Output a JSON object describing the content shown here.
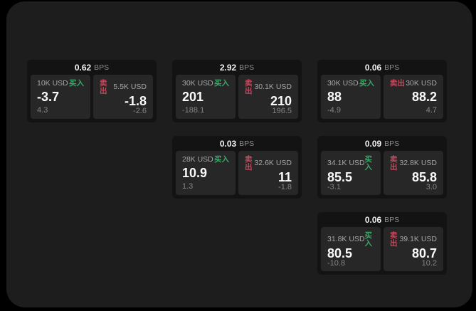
{
  "labels": {
    "bps": "BPS",
    "buy": "买入",
    "sell": "卖出"
  },
  "colors": {
    "page_bg": "#000000",
    "panel_bg": "#1d1d1e",
    "card_bg": "#131313",
    "subpanel_bg": "#272727",
    "buy_green": "#3da768",
    "sell_red": "#c4475c",
    "value_text": "#fafafa",
    "muted_text": "#8d8d8d"
  },
  "cards": [
    {
      "bps": "0.62",
      "buy": {
        "amount": "10K USD",
        "value": "-3.7",
        "sub": "4.3"
      },
      "sell": {
        "amount": "5.5K USD",
        "value": "-1.8",
        "sub": "-2.6"
      }
    },
    {
      "bps": "2.92",
      "buy": {
        "amount": "30K USD",
        "value": "201",
        "sub": "-188.1"
      },
      "sell": {
        "amount": "30.1K USD",
        "value": "210",
        "sub": "196.5"
      }
    },
    {
      "bps": "0.06",
      "buy": {
        "amount": "30K USD",
        "value": "88",
        "sub": "-4.9"
      },
      "sell": {
        "amount": "30K USD",
        "value": "88.2",
        "sub": "4.7"
      }
    },
    {
      "bps": "0.03",
      "buy": {
        "amount": "28K USD",
        "value": "10.9",
        "sub": "1.3"
      },
      "sell": {
        "amount": "32.6K USD",
        "value": "11",
        "sub": "-1.8"
      }
    },
    {
      "bps": "0.09",
      "buy": {
        "amount": "34.1K USD",
        "value": "85.5",
        "sub": "-3.1"
      },
      "sell": {
        "amount": "32.8K USD",
        "value": "85.8",
        "sub": "3.0"
      }
    },
    {
      "bps": "0.06",
      "buy": {
        "amount": "31.8K USD",
        "value": "80.5",
        "sub": "-10.8"
      },
      "sell": {
        "amount": "39.1K USD",
        "value": "80.7",
        "sub": "10.2"
      }
    }
  ]
}
